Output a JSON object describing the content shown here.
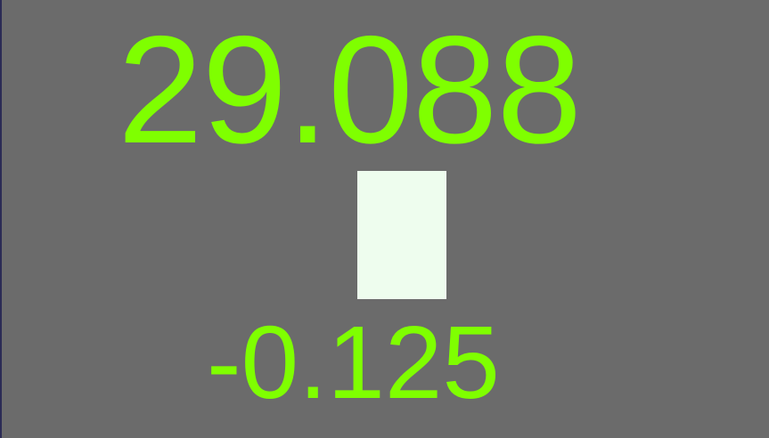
{
  "display": {
    "primary_value": "29.088",
    "secondary_value": "-0.125"
  },
  "indicator": {
    "icon": "status-block-icon"
  },
  "colors": {
    "background": "#6b6b6b",
    "text": "#7fff00",
    "indicator": "#eefdee",
    "left_edge": "#2b2b55"
  }
}
